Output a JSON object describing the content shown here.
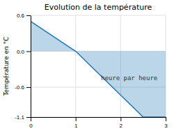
{
  "chart_data": {
    "type": "area",
    "title": "Evolution de la température",
    "ylabel": "Température en °C",
    "annotations": [
      {
        "text": "heure par heure"
      }
    ],
    "x": [
      0,
      1,
      2.5,
      3
    ],
    "values": [
      0.5,
      0.0,
      -1.1,
      -1.1
    ],
    "xlim": [
      0,
      3
    ],
    "ylim": [
      -1.1,
      0.6
    ],
    "xticks": [
      0,
      1,
      2,
      3
    ],
    "yticks": [
      -1.1,
      -0.6,
      {
        "value": 0,
        "label": "0.0"
      },
      0.6
    ],
    "grid": true
  }
}
